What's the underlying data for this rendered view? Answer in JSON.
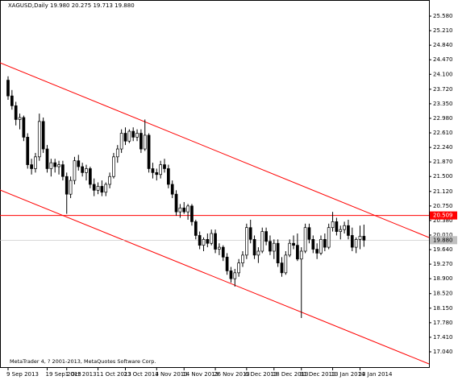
{
  "chart_data": {
    "type": "candlestick",
    "title": "XAGUSD,Daily  19.980 20.275 19.713 19.880",
    "footer": "MetaTrader 4, ? 2001-2013, MetaQuotes Software Corp.",
    "categories": [
      "9 Sep 2013",
      null,
      null,
      null,
      null,
      null,
      null,
      null,
      null,
      null,
      "19 Sep 2013",
      null,
      null,
      null,
      null,
      "1 Oct 2013",
      null,
      null,
      null,
      null,
      null,
      null,
      null,
      "11 Oct 2013",
      null,
      null,
      null,
      null,
      null,
      null,
      "23 Oct 2013",
      null,
      null,
      null,
      null,
      null,
      null,
      null,
      "4 Nov 2013",
      null,
      null,
      null,
      null,
      null,
      null,
      "14 Nov 2013",
      null,
      null,
      null,
      null,
      null,
      null,
      null,
      "26 Nov 2013",
      null,
      null,
      null,
      null,
      null,
      null,
      null,
      "6 Dec 2013",
      null,
      null,
      null,
      null,
      null,
      null,
      "18 Dec 2013",
      null,
      null,
      null,
      null,
      null,
      null,
      "31 Dec 2013",
      null,
      null,
      null,
      null,
      null,
      null,
      null,
      "13 Jan 2014",
      null,
      null,
      null,
      null,
      null,
      null,
      "23 Jan 2014",
      null
    ],
    "ohlc": [
      [
        23.95,
        24.05,
        23.45,
        23.55
      ],
      [
        23.55,
        23.7,
        23.2,
        23.3
      ],
      [
        23.3,
        23.4,
        22.8,
        22.95
      ],
      [
        22.95,
        23.1,
        22.7,
        23.0
      ],
      [
        23.0,
        23.05,
        22.4,
        22.5
      ],
      [
        22.5,
        22.6,
        21.7,
        21.8
      ],
      [
        21.8,
        21.95,
        21.55,
        21.7
      ],
      [
        21.7,
        22.1,
        21.6,
        22.0
      ],
      [
        22.0,
        23.1,
        21.9,
        22.9
      ],
      [
        22.9,
        23.0,
        22.1,
        22.2
      ],
      [
        22.2,
        22.3,
        21.6,
        21.7
      ],
      [
        21.7,
        21.95,
        21.5,
        21.85
      ],
      [
        21.85,
        21.95,
        21.6,
        21.75
      ],
      [
        21.75,
        21.9,
        21.55,
        21.8
      ],
      [
        21.8,
        21.9,
        21.4,
        21.5
      ],
      [
        21.5,
        21.6,
        20.55,
        21.05
      ],
      [
        21.05,
        21.5,
        20.95,
        21.4
      ],
      [
        21.4,
        22.0,
        21.3,
        21.9
      ],
      [
        21.9,
        22.05,
        21.65,
        21.75
      ],
      [
        21.75,
        21.85,
        21.5,
        21.6
      ],
      [
        21.6,
        21.8,
        21.4,
        21.7
      ],
      [
        21.7,
        21.75,
        21.2,
        21.3
      ],
      [
        21.3,
        21.45,
        21.0,
        21.15
      ],
      [
        21.15,
        21.35,
        21.05,
        21.25
      ],
      [
        21.25,
        21.4,
        21.0,
        21.1
      ],
      [
        21.1,
        21.35,
        21.0,
        21.3
      ],
      [
        21.3,
        21.6,
        21.2,
        21.5
      ],
      [
        21.5,
        22.1,
        21.45,
        22.0
      ],
      [
        22.0,
        22.3,
        21.85,
        22.2
      ],
      [
        22.2,
        22.7,
        22.1,
        22.6
      ],
      [
        22.6,
        22.75,
        22.3,
        22.4
      ],
      [
        22.4,
        22.7,
        22.35,
        22.65
      ],
      [
        22.65,
        22.75,
        22.4,
        22.5
      ],
      [
        22.5,
        22.7,
        22.4,
        22.6
      ],
      [
        22.6,
        22.7,
        22.1,
        22.2
      ],
      [
        22.2,
        22.95,
        22.15,
        22.55
      ],
      [
        22.55,
        22.6,
        21.6,
        21.7
      ],
      [
        21.7,
        21.85,
        21.45,
        21.6
      ],
      [
        21.6,
        21.7,
        21.4,
        21.55
      ],
      [
        21.55,
        21.9,
        21.45,
        21.8
      ],
      [
        21.8,
        21.95,
        21.6,
        21.7
      ],
      [
        21.7,
        21.8,
        21.2,
        21.3
      ],
      [
        21.3,
        21.4,
        20.95,
        21.05
      ],
      [
        21.05,
        21.15,
        20.5,
        20.6
      ],
      [
        20.6,
        20.8,
        20.45,
        20.7
      ],
      [
        20.7,
        20.85,
        20.55,
        20.6
      ],
      [
        20.6,
        20.8,
        20.4,
        20.75
      ],
      [
        20.75,
        20.8,
        20.25,
        20.35
      ],
      [
        20.35,
        20.4,
        19.9,
        20.0
      ],
      [
        20.0,
        20.1,
        19.65,
        19.75
      ],
      [
        19.75,
        19.95,
        19.6,
        19.9
      ],
      [
        19.9,
        20.05,
        19.7,
        19.8
      ],
      [
        19.8,
        20.15,
        19.75,
        20.05
      ],
      [
        20.05,
        20.15,
        19.55,
        19.65
      ],
      [
        19.65,
        19.8,
        19.5,
        19.7
      ],
      [
        19.7,
        19.75,
        19.35,
        19.45
      ],
      [
        19.45,
        19.55,
        19.0,
        19.1
      ],
      [
        19.1,
        19.2,
        18.8,
        18.9
      ],
      [
        18.9,
        19.15,
        18.7,
        19.05
      ],
      [
        19.05,
        19.4,
        18.95,
        19.3
      ],
      [
        19.3,
        19.6,
        19.2,
        19.5
      ],
      [
        19.5,
        20.3,
        19.4,
        20.2
      ],
      [
        20.2,
        20.4,
        19.8,
        19.9
      ],
      [
        19.9,
        20.0,
        19.4,
        19.5
      ],
      [
        19.5,
        19.7,
        19.3,
        19.6
      ],
      [
        19.6,
        20.2,
        19.55,
        20.1
      ],
      [
        20.1,
        20.2,
        19.75,
        19.85
      ],
      [
        19.85,
        20.0,
        19.5,
        19.6
      ],
      [
        19.6,
        19.9,
        19.4,
        19.8
      ],
      [
        19.8,
        19.9,
        19.2,
        19.3
      ],
      [
        19.3,
        19.45,
        18.95,
        19.05
      ],
      [
        19.05,
        19.6,
        19.0,
        19.5
      ],
      [
        19.5,
        19.9,
        19.45,
        19.8
      ],
      [
        19.8,
        20.0,
        19.65,
        19.75
      ],
      [
        19.75,
        20.05,
        19.35,
        19.4
      ],
      [
        19.4,
        19.7,
        17.9,
        19.6
      ],
      [
        19.6,
        20.3,
        19.55,
        20.2
      ],
      [
        20.2,
        20.3,
        19.8,
        19.9
      ],
      [
        19.9,
        20.0,
        19.55,
        19.65
      ],
      [
        19.65,
        19.8,
        19.4,
        19.55
      ],
      [
        19.55,
        20.0,
        19.5,
        19.9
      ],
      [
        19.9,
        20.05,
        19.6,
        19.7
      ],
      [
        19.7,
        20.3,
        19.65,
        20.2
      ],
      [
        20.2,
        20.6,
        20.1,
        20.35
      ],
      [
        20.35,
        20.45,
        20.0,
        20.1
      ],
      [
        20.1,
        20.25,
        19.9,
        20.15
      ],
      [
        20.15,
        20.35,
        20.05,
        20.25
      ],
      [
        20.25,
        20.4,
        19.9,
        20.0
      ],
      [
        20.0,
        20.2,
        19.6,
        19.7
      ],
      [
        19.7,
        19.95,
        19.55,
        19.9
      ],
      [
        19.9,
        20.25,
        19.65,
        19.98
      ],
      [
        19.98,
        20.275,
        19.713,
        19.88
      ]
    ],
    "ylim": [
      16.63,
      25.99
    ],
    "yticks": [
      {
        "value": 25.58,
        "label": "25.580"
      },
      {
        "value": 25.21,
        "label": "25.210"
      },
      {
        "value": 24.84,
        "label": "24.840"
      },
      {
        "value": 24.47,
        "label": "24.470"
      },
      {
        "value": 24.1,
        "label": "24.100"
      },
      {
        "value": 23.72,
        "label": "23.720"
      },
      {
        "value": 23.35,
        "label": "23.350"
      },
      {
        "value": 22.98,
        "label": "22.980"
      },
      {
        "value": 22.61,
        "label": "22.610"
      },
      {
        "value": 22.24,
        "label": "22.240"
      },
      {
        "value": 21.87,
        "label": "21.870"
      },
      {
        "value": 21.5,
        "label": "21.500"
      },
      {
        "value": 21.12,
        "label": "21.120"
      },
      {
        "value": 20.75,
        "label": "20.750"
      },
      {
        "value": 20.38,
        "label": "20.380"
      },
      {
        "value": 20.01,
        "label": "20.010"
      },
      {
        "value": 19.64,
        "label": "19.640"
      },
      {
        "value": 19.27,
        "label": "19.270"
      },
      {
        "value": 18.9,
        "label": "18.900"
      },
      {
        "value": 18.52,
        "label": "18.520"
      },
      {
        "value": 18.15,
        "label": "18.150"
      },
      {
        "value": 17.78,
        "label": "17.780"
      },
      {
        "value": 17.41,
        "label": "17.410"
      },
      {
        "value": 17.04,
        "label": "17.040"
      }
    ],
    "hline": {
      "value": 20.509,
      "label": "20.509",
      "color": "#ff0000"
    },
    "bid": {
      "value": 19.88,
      "label": "19.880",
      "color": "#c0c0c0"
    },
    "up_color": "#ffffff",
    "down_color": "#000000"
  }
}
